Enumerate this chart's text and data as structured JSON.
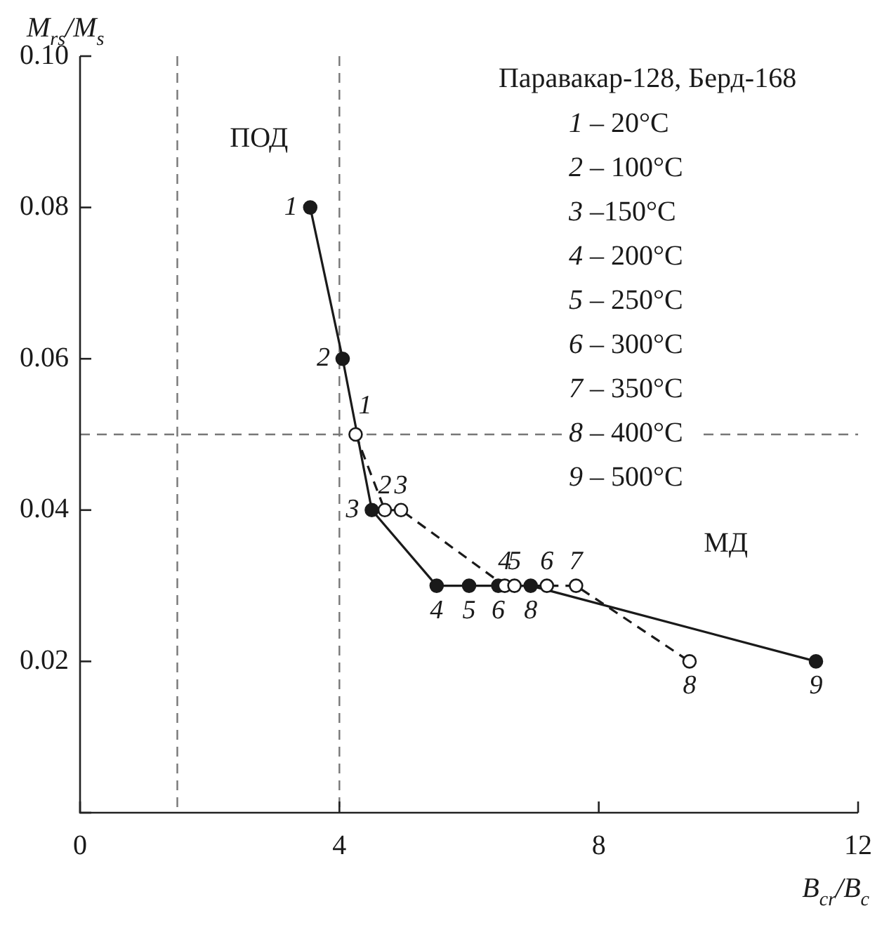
{
  "chart_data": {
    "type": "line",
    "xlabel": "B$_{cr}$/B$_{c}$",
    "ylabel": "M$_{rs}$/M$_{s}$",
    "legend_title": "Паравакар-128, Берд-168",
    "annotations": [
      "1 – 20°C",
      "2 – 100°C",
      "3 –150°C",
      "4 – 200°C",
      "5 – 250°C",
      "6 – 300°C",
      "7 – 350°C",
      "8 – 400°C",
      "9 – 500°C",
      "ПОД",
      "МД",
      {
        "text": "1",
        "x": 3.55,
        "y": 0.08
      },
      {
        "text": "2",
        "x": 4.05,
        "y": 0.06
      },
      {
        "text": "3",
        "x": 4.5,
        "y": 0.04
      },
      {
        "text": "4",
        "x": 5.5,
        "y": 0.03
      },
      {
        "text": "5",
        "x": 6.0,
        "y": 0.03
      },
      {
        "text": "6",
        "x": 6.45,
        "y": 0.03
      },
      {
        "text": "8",
        "x": 6.95,
        "y": 0.03
      },
      {
        "text": "9",
        "x": 11.35,
        "y": 0.02
      },
      {
        "text": "1",
        "x": 4.25,
        "y": 0.05
      },
      {
        "text": "2",
        "x": 4.7,
        "y": 0.04
      },
      {
        "text": "3",
        "x": 4.95,
        "y": 0.04
      },
      {
        "text": "4",
        "x": 6.55,
        "y": 0.03
      },
      {
        "text": "5",
        "x": 6.7,
        "y": 0.03
      },
      {
        "text": "6",
        "x": 7.2,
        "y": 0.03
      },
      {
        "text": "7",
        "x": 7.65,
        "y": 0.03
      },
      {
        "text": "8",
        "x": 9.4,
        "y": 0.02
      }
    ],
    "series": [
      {
        "color": "#1a1a1a",
        "line_style": "solid",
        "x": [
          3.55,
          4.05,
          4.5,
          5.5,
          6.0,
          6.45,
          6.95,
          11.35
        ],
        "values": [
          0.08,
          0.06,
          0.04,
          0.03,
          0.03,
          0.03,
          0.03,
          0.02
        ]
      },
      {
        "color": "#1a1a1a",
        "line_style": "dashed",
        "x": [
          4.25,
          4.7,
          4.95,
          6.55,
          6.7,
          7.2,
          7.65,
          9.4
        ],
        "values": [
          0.05,
          0.04,
          0.04,
          0.03,
          0.03,
          0.03,
          0.03,
          0.02
        ]
      }
    ],
    "marker": "circle",
    "xlim": [
      0,
      12
    ],
    "xticks": [
      0,
      4,
      8,
      12
    ],
    "ylim": [
      0,
      0.1
    ],
    "yticks": [
      {
        "value": 0,
        "label": null
      },
      0.02,
      0.04,
      0.06,
      0.08,
      {
        "value": 0.1,
        "label": "0.10"
      }
    ],
    "ref_lines": [
      {
        "axis": "x",
        "value": 1.5,
        "color": "#777777",
        "line_style": "dashed"
      },
      {
        "axis": "x",
        "value": 4,
        "color": "#777777",
        "line_style": "dashed"
      },
      {
        "axis": "y",
        "value": 0.05,
        "color": "#777777",
        "line_style": "dashed"
      }
    ],
    "grid": false,
    "legend": false
  }
}
